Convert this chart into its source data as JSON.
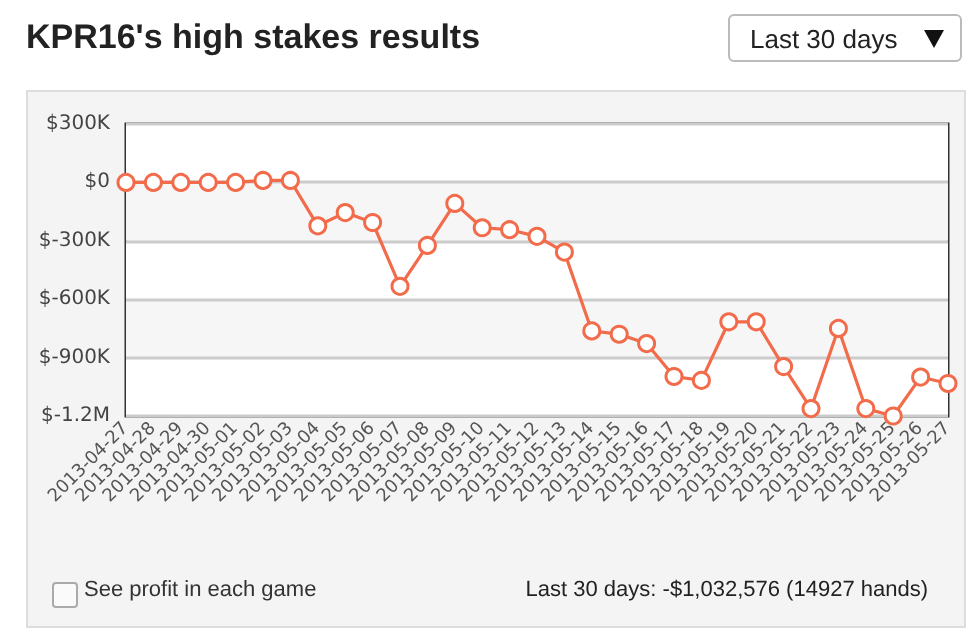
{
  "chart_data": {
    "type": "line",
    "title": "KPR16's high stakes results",
    "categories": [
      "2013-04-27",
      "2013-04-28",
      "2013-04-29",
      "2013-04-30",
      "2013-05-01",
      "2013-05-02",
      "2013-05-03",
      "2013-05-04",
      "2013-05-05",
      "2013-05-06",
      "2013-05-07",
      "2013-05-08",
      "2013-05-09",
      "2013-05-10",
      "2013-05-11",
      "2013-05-12",
      "2013-05-13",
      "2013-05-14",
      "2013-05-15",
      "2013-05-16",
      "2013-05-17",
      "2013-05-18",
      "2013-05-19",
      "2013-05-20",
      "2013-05-21",
      "2013-05-22",
      "2013-05-23",
      "2013-05-24",
      "2013-05-25",
      "2013-05-26",
      "2013-05-27"
    ],
    "series": [
      {
        "color": "#f26b4a",
        "values": [
          0,
          0,
          0,
          0,
          0,
          10000,
          10000,
          -223000,
          -155000,
          -206000,
          -534000,
          -324000,
          -108000,
          -233000,
          -243000,
          -277000,
          -358000,
          -763000,
          -780000,
          -828000,
          -997000,
          -1017000,
          -716000,
          -716000,
          -946000,
          -1162000,
          -750000,
          -1162000,
          -1200000,
          -1000000,
          -1033000
        ]
      }
    ],
    "ylim": [
      -1200000,
      300000
    ],
    "yticks": [
      {
        "value": -1200000,
        "label": "$-1.2M"
      },
      {
        "value": -900000,
        "label": "$-900K"
      },
      {
        "value": -600000,
        "label": "$-600K"
      },
      {
        "value": -300000,
        "label": "$-300K"
      },
      {
        "value": 0,
        "label": "$0"
      },
      {
        "value": 300000,
        "label": "$300K"
      }
    ],
    "grid": "y",
    "marker": "circle",
    "annotations": [
      "Last 30 days",
      "See profit in each game",
      "Last 30 days: -$1,032,576 (14927 hands)"
    ]
  }
}
